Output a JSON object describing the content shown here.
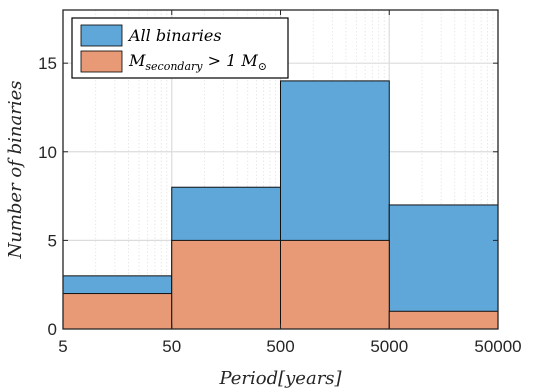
{
  "chart_data": {
    "type": "bar",
    "x_scale": "log",
    "bin_edges": [
      5,
      50,
      500,
      5000,
      50000
    ],
    "series": [
      {
        "name": "All binaries",
        "values": [
          3,
          8,
          14,
          7
        ],
        "color": "#5fa7d9"
      },
      {
        "name_main": "M",
        "name_sub": "secondary",
        "name_rest": " > 1 M",
        "name_symbol": "⊙",
        "values": [
          2,
          5,
          5,
          1
        ],
        "color": "#e89a76"
      }
    ],
    "xlabel": "Period[years]",
    "ylabel": "Number of binaries",
    "xticks": [
      "5",
      "50",
      "500",
      "5000",
      "50000"
    ],
    "yticks": [
      "0",
      "5",
      "10",
      "15"
    ],
    "ylim": [
      0,
      18
    ],
    "grid": true,
    "legend_position": "top-left"
  }
}
